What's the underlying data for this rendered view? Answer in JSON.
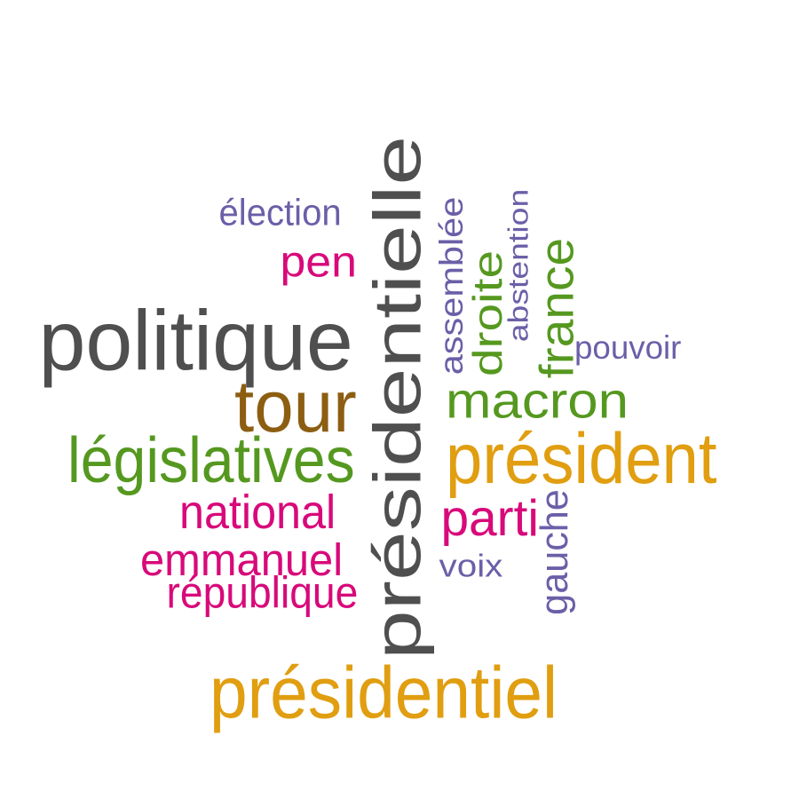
{
  "palette": {
    "gray": "#4f4f4f",
    "orange": "#e09e10",
    "green": "#55981f",
    "magenta": "#d8097a",
    "purple": "#6b5fa8",
    "brown": "#8c5e12"
  },
  "words": [
    {
      "id": "w-presidentielle",
      "text": "présidentielle",
      "color": "gray",
      "vertical": true
    },
    {
      "id": "w-politique",
      "text": "politique",
      "color": "gray",
      "vertical": false
    },
    {
      "id": "w-presidentiel",
      "text": "présidentiel",
      "color": "orange",
      "vertical": false
    },
    {
      "id": "w-president",
      "text": "président",
      "color": "orange",
      "vertical": false
    },
    {
      "id": "w-legislatives",
      "text": "législatives",
      "color": "green",
      "vertical": false
    },
    {
      "id": "w-tour",
      "text": "tour",
      "color": "brown",
      "vertical": false
    },
    {
      "id": "w-macron",
      "text": "macron",
      "color": "green",
      "vertical": false
    },
    {
      "id": "w-national",
      "text": "national",
      "color": "magenta",
      "vertical": false
    },
    {
      "id": "w-emmanuel",
      "text": "emmanuel",
      "color": "magenta",
      "vertical": false
    },
    {
      "id": "w-republique",
      "text": "république",
      "color": "magenta",
      "vertical": false
    },
    {
      "id": "w-pen",
      "text": "pen",
      "color": "magenta",
      "vertical": false
    },
    {
      "id": "w-parti",
      "text": "parti",
      "color": "magenta",
      "vertical": false
    },
    {
      "id": "w-election",
      "text": "élection",
      "color": "purple",
      "vertical": false
    },
    {
      "id": "w-assemblee",
      "text": "assemblée",
      "color": "purple",
      "vertical": true
    },
    {
      "id": "w-droite",
      "text": "droite",
      "color": "green",
      "vertical": true
    },
    {
      "id": "w-abstention",
      "text": "abstention",
      "color": "purple",
      "vertical": true
    },
    {
      "id": "w-france",
      "text": "france",
      "color": "green",
      "vertical": true
    },
    {
      "id": "w-pouvoir",
      "text": "pouvoir",
      "color": "purple",
      "vertical": false
    },
    {
      "id": "w-voix",
      "text": "voix",
      "color": "purple",
      "vertical": false
    },
    {
      "id": "w-gauche",
      "text": "gauche",
      "color": "purple",
      "vertical": true
    }
  ]
}
